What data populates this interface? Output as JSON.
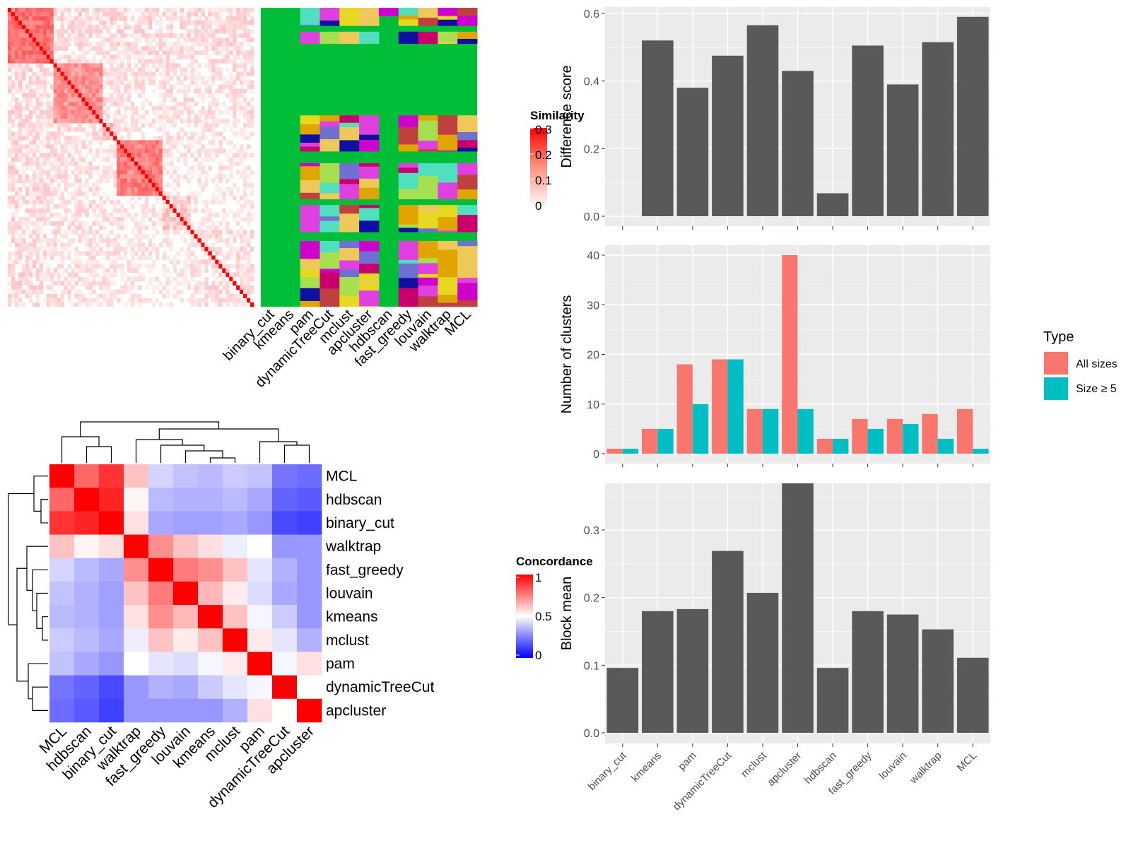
{
  "colors": {
    "panel_bg": "#EBEBEB",
    "grid": "#FFFFFF",
    "bar": "#595959",
    "all_sizes": "#F8766D",
    "size_ge5": "#00BFC4",
    "heat_red": "#FF0000",
    "heat_white": "#FFFFFF",
    "heat_blue": "#0000FF",
    "partition_green": "#00BE37",
    "partition_magenta": "#D000CC",
    "partition_crimson": "#C9006B",
    "partition_yellow": "#E6D820",
    "partition_orange": "#E0A500",
    "partition_sand": "#EEC95A"
  },
  "similarity_heatmap": {
    "legend_title": "Similarity",
    "legend_ticks": [
      "0.3",
      "0.2",
      "0.1",
      "0"
    ],
    "methods": [
      "binary_cut",
      "kmeans",
      "pam",
      "dynamicTreeCut",
      "mclust",
      "apcluster",
      "hdbscan",
      "fast_greedy",
      "louvain",
      "walktrap",
      "MCL"
    ]
  },
  "concordance_heatmap": {
    "legend_title": "Concordance",
    "legend_ticks": [
      "1",
      "0.5",
      "0"
    ],
    "order": [
      "MCL",
      "hdbscan",
      "binary_cut",
      "walktrap",
      "fast_greedy",
      "louvain",
      "kmeans",
      "mclust",
      "pam",
      "dynamicTreeCut",
      "apcluster"
    ],
    "matrix": [
      [
        1.0,
        0.8,
        0.9,
        0.62,
        0.4,
        0.36,
        0.34,
        0.38,
        0.36,
        0.18,
        0.16
      ],
      [
        0.8,
        1.0,
        0.93,
        0.52,
        0.34,
        0.32,
        0.32,
        0.34,
        0.3,
        0.14,
        0.12
      ],
      [
        0.9,
        0.93,
        1.0,
        0.56,
        0.3,
        0.28,
        0.28,
        0.3,
        0.26,
        0.08,
        0.06
      ],
      [
        0.62,
        0.52,
        0.56,
        1.0,
        0.72,
        0.62,
        0.56,
        0.46,
        0.5,
        0.26,
        0.26
      ],
      [
        0.4,
        0.34,
        0.3,
        0.72,
        1.0,
        0.76,
        0.72,
        0.62,
        0.44,
        0.32,
        0.26
      ],
      [
        0.36,
        0.32,
        0.28,
        0.62,
        0.76,
        1.0,
        0.64,
        0.54,
        0.42,
        0.3,
        0.26
      ],
      [
        0.34,
        0.32,
        0.28,
        0.56,
        0.72,
        0.64,
        1.0,
        0.62,
        0.48,
        0.38,
        0.26
      ],
      [
        0.38,
        0.34,
        0.3,
        0.46,
        0.62,
        0.54,
        0.62,
        1.0,
        0.54,
        0.44,
        0.32
      ],
      [
        0.36,
        0.3,
        0.26,
        0.5,
        0.44,
        0.42,
        0.48,
        0.54,
        1.0,
        0.48,
        0.56
      ],
      [
        0.18,
        0.14,
        0.08,
        0.26,
        0.32,
        0.3,
        0.38,
        0.44,
        0.48,
        1.0,
        0.5
      ],
      [
        0.16,
        0.12,
        0.06,
        0.26,
        0.26,
        0.26,
        0.26,
        0.32,
        0.56,
        0.5,
        1.0
      ]
    ]
  },
  "chart_data": [
    {
      "type": "bar",
      "categories": [
        "binary_cut",
        "kmeans",
        "pam",
        "dynamicTreeCut",
        "mclust",
        "apcluster",
        "hdbscan",
        "fast_greedy",
        "louvain",
        "walktrap",
        "MCL"
      ],
      "values": [
        0.0,
        0.52,
        0.38,
        0.475,
        0.565,
        0.43,
        0.068,
        0.505,
        0.39,
        0.515,
        0.59
      ],
      "ylabel": "Difference score",
      "ylim": [
        0,
        0.6
      ],
      "yticks": [
        "0.0",
        "0.2",
        "0.4",
        "0.6"
      ],
      "grid": true
    },
    {
      "type": "bar",
      "categories": [
        "binary_cut",
        "kmeans",
        "pam",
        "dynamicTreeCut",
        "mclust",
        "apcluster",
        "hdbscan",
        "fast_greedy",
        "louvain",
        "walktrap",
        "MCL"
      ],
      "series": [
        {
          "name": "All sizes",
          "values": [
            1,
            5,
            18,
            19,
            9,
            40,
            3,
            7,
            7,
            8,
            9
          ]
        },
        {
          "name": "Size ≥ 5",
          "values": [
            1,
            5,
            10,
            19,
            9,
            9,
            3,
            5,
            6,
            3,
            1
          ]
        }
      ],
      "ylabel": "Number of clusters",
      "ylim": [
        0,
        40
      ],
      "yticks": [
        "0",
        "10",
        "20",
        "30",
        "40"
      ],
      "legend_title": "Type",
      "legend": "right",
      "grid": true
    },
    {
      "type": "bar",
      "categories": [
        "binary_cut",
        "kmeans",
        "pam",
        "dynamicTreeCut",
        "mclust",
        "apcluster",
        "hdbscan",
        "fast_greedy",
        "louvain",
        "walktrap",
        "MCL"
      ],
      "values": [
        0.096,
        0.18,
        0.183,
        0.269,
        0.207,
        0.369,
        0.096,
        0.18,
        0.175,
        0.153,
        0.111
      ],
      "ylabel": "Block mean",
      "ylim": [
        0,
        0.37
      ],
      "yticks": [
        "0.0",
        "0.1",
        "0.2",
        "0.3"
      ],
      "grid": true
    }
  ]
}
